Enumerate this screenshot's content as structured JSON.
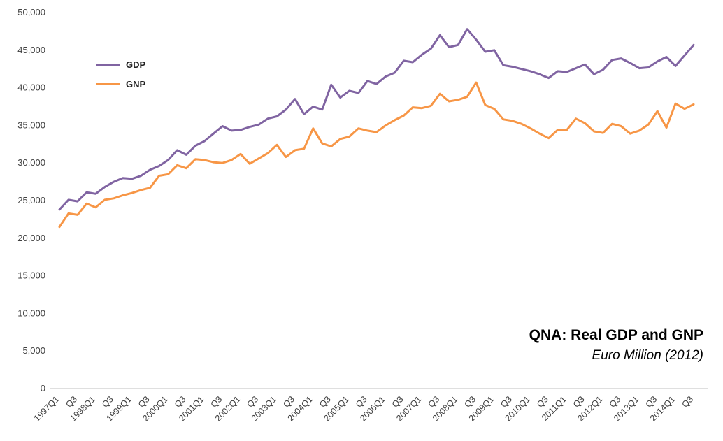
{
  "title": "QNA: Real GDP and GNP",
  "subtitle": "Euro Million (2012)",
  "legend": {
    "gdp_label": "GDP",
    "gnp_label": "GNP"
  },
  "colors": {
    "gdp": "#8064A2",
    "gnp": "#F79646",
    "axis": "#bfbfbf",
    "tick_text": "#404040"
  },
  "chart_data": {
    "type": "line",
    "title": "QNA: Real GDP and GNP",
    "subtitle": "Euro Million (2012)",
    "ylim": [
      0,
      50000
    ],
    "y_tick_step": 5000,
    "grid": false,
    "legend_position": "top-left-inside",
    "categories": [
      "1997Q1",
      "1997Q2",
      "1997Q3",
      "1997Q4",
      "1998Q1",
      "1998Q2",
      "1998Q3",
      "1998Q4",
      "1999Q1",
      "1999Q2",
      "1999Q3",
      "1999Q4",
      "2000Q1",
      "2000Q2",
      "2000Q3",
      "2000Q4",
      "2001Q1",
      "2001Q2",
      "2001Q3",
      "2001Q4",
      "2002Q1",
      "2002Q2",
      "2002Q3",
      "2002Q4",
      "2003Q1",
      "2003Q2",
      "2003Q3",
      "2003Q4",
      "2004Q1",
      "2004Q2",
      "2004Q3",
      "2004Q4",
      "2005Q1",
      "2005Q2",
      "2005Q3",
      "2005Q4",
      "2006Q1",
      "2006Q2",
      "2006Q3",
      "2006Q4",
      "2007Q1",
      "2007Q2",
      "2007Q3",
      "2007Q4",
      "2008Q1",
      "2008Q2",
      "2008Q3",
      "2008Q4",
      "2009Q1",
      "2009Q2",
      "2009Q3",
      "2009Q4",
      "2010Q1",
      "2010Q2",
      "2010Q3",
      "2010Q4",
      "2011Q1",
      "2011Q2",
      "2011Q3",
      "2011Q4",
      "2012Q1",
      "2012Q2",
      "2012Q3",
      "2012Q4",
      "2013Q1",
      "2013Q2",
      "2013Q3",
      "2013Q4",
      "2014Q1",
      "2014Q2",
      "2014Q3"
    ],
    "series": [
      {
        "name": "GDP",
        "color": "#8064A2",
        "values": [
          23800,
          25100,
          24900,
          26100,
          25900,
          26800,
          27500,
          28000,
          27900,
          28300,
          29100,
          29600,
          30400,
          31700,
          31100,
          32300,
          32900,
          33900,
          34900,
          34300,
          34400,
          34800,
          35100,
          35900,
          36200,
          37100,
          38500,
          36500,
          37500,
          37100,
          40400,
          38700,
          39600,
          39300,
          40900,
          40500,
          41500,
          42000,
          43600,
          43400,
          44400,
          45200,
          47000,
          45400,
          45700,
          47800,
          46400,
          44800,
          45000,
          43000,
          42800,
          42500,
          42200,
          41800,
          41300,
          42200,
          42100,
          42600,
          43100,
          41800,
          42400,
          43700,
          43900,
          43300,
          42600,
          42700,
          43500,
          44100,
          42900,
          44300,
          45700
        ]
      },
      {
        "name": "GNP",
        "color": "#F79646",
        "values": [
          21500,
          23300,
          23100,
          24600,
          24100,
          25100,
          25300,
          25700,
          26000,
          26400,
          26700,
          28300,
          28500,
          29700,
          29300,
          30500,
          30400,
          30100,
          30000,
          30400,
          31200,
          29900,
          30600,
          31300,
          32400,
          30800,
          31700,
          31900,
          34600,
          32600,
          32200,
          33200,
          33500,
          34600,
          34300,
          34100,
          35000,
          35700,
          36300,
          37400,
          37300,
          37600,
          39200,
          38200,
          38400,
          38800,
          40700,
          37700,
          37200,
          35800,
          35600,
          35200,
          34600,
          33900,
          33300,
          34400,
          34400,
          35900,
          35300,
          34200,
          34000,
          35200,
          34900,
          33900,
          34300,
          35100,
          36900,
          34700,
          37900,
          37200,
          37800
        ]
      }
    ]
  }
}
